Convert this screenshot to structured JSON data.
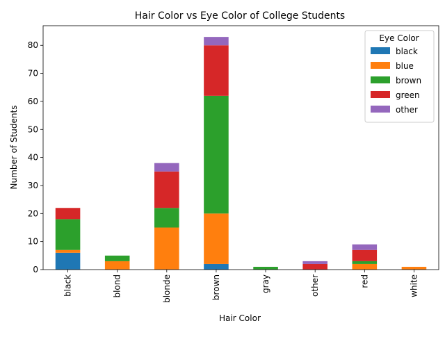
{
  "chart_data": {
    "type": "bar",
    "stacked": true,
    "title": "Hair Color vs Eye Color of College Students",
    "xlabel": "Hair Color",
    "ylabel": "Number of Students",
    "categories": [
      "black",
      "blond",
      "blonde",
      "brown",
      "gray",
      "other",
      "red",
      "white"
    ],
    "ylim": [
      0,
      87
    ],
    "yticks": [
      0,
      10,
      20,
      30,
      40,
      50,
      60,
      70,
      80
    ],
    "grid": false,
    "legend": {
      "title": "Eye Color",
      "placement": "top-right"
    },
    "series": [
      {
        "name": "black",
        "color": "#1f77b4",
        "values": [
          6,
          0,
          0,
          2,
          0,
          0,
          0,
          0
        ]
      },
      {
        "name": "blue",
        "color": "#ff7f0e",
        "values": [
          1,
          3,
          15,
          18,
          0,
          0,
          2,
          1
        ]
      },
      {
        "name": "brown",
        "color": "#2ca02c",
        "values": [
          11,
          2,
          7,
          42,
          1,
          0,
          1,
          0
        ]
      },
      {
        "name": "green",
        "color": "#d62728",
        "values": [
          4,
          0,
          13,
          18,
          0,
          2,
          4,
          0
        ]
      },
      {
        "name": "other",
        "color": "#9467bd",
        "values": [
          0,
          0,
          3,
          3,
          0,
          1,
          2,
          0
        ]
      }
    ]
  }
}
